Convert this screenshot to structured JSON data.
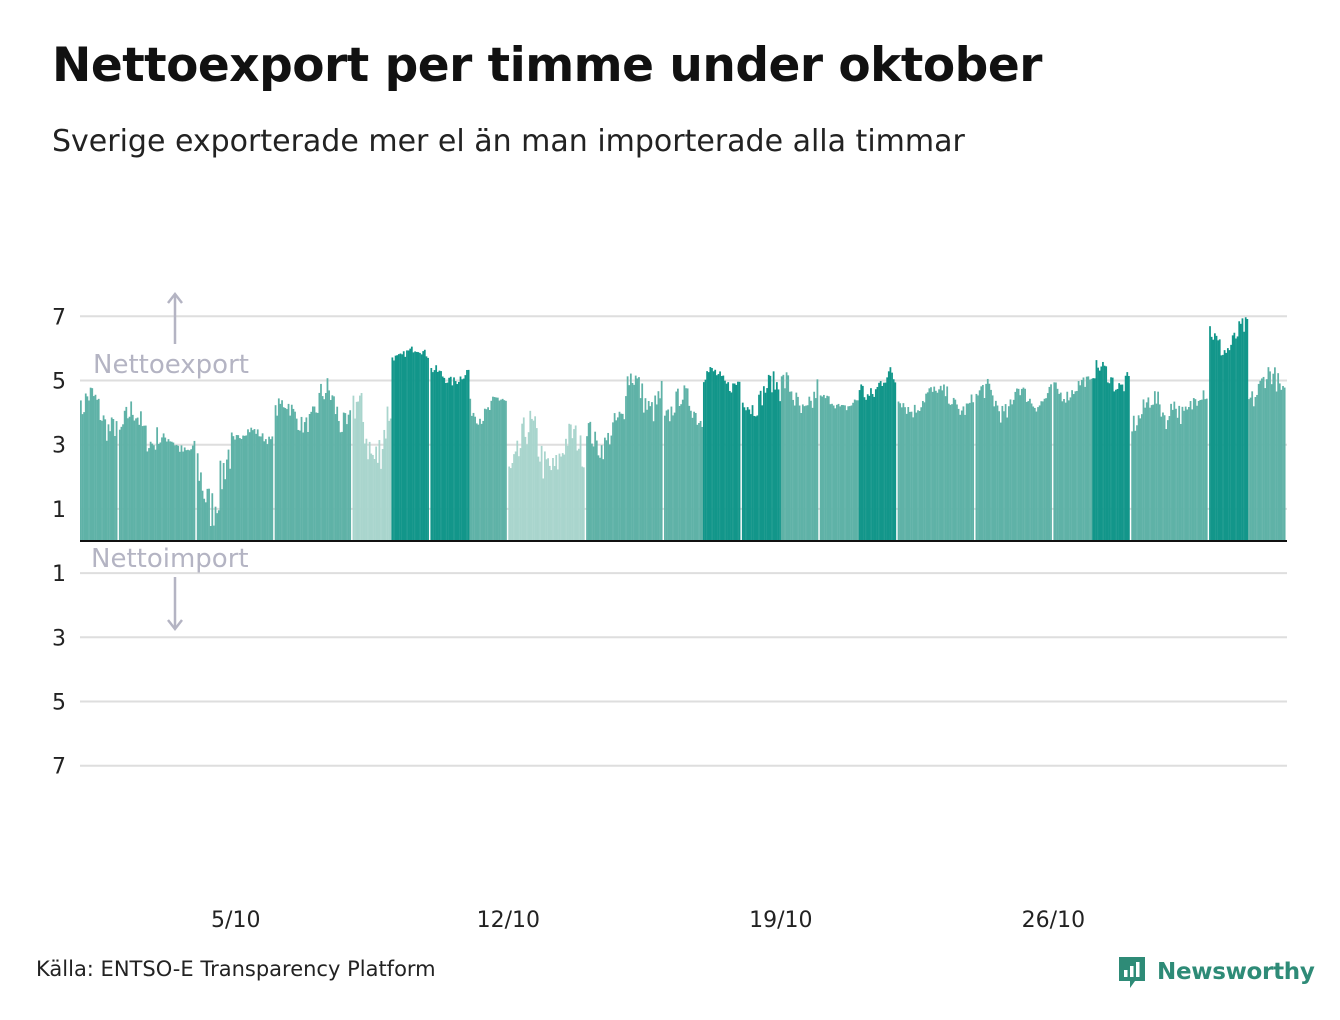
{
  "header": {
    "title": "Nettoexport per timme under oktober",
    "subtitle": "Sverige exporterade mer el än man importerade alla timmar"
  },
  "footer": {
    "source": "Källa: ENTSO-E Transparency Platform",
    "brand": "Newsworthy"
  },
  "colors": {
    "export_dark": "#12968a",
    "export_mid": "#5fb2a7",
    "export_light": "#a9d5cd",
    "grid": "#dedede",
    "zero_line": "#111111",
    "annotation": "#b4b4c3",
    "brand": "#2e8b77"
  },
  "chart_data": {
    "type": "bar",
    "x_unit": "hour",
    "x_start": "2020-10-01",
    "x_end": "2020-10-31",
    "ylim": [
      -8,
      7.2
    ],
    "y_ticks": [
      {
        "value": 7,
        "label": "7"
      },
      {
        "value": 5,
        "label": "5"
      },
      {
        "value": 3,
        "label": "3"
      },
      {
        "value": 1,
        "label": "1"
      },
      {
        "value": -1,
        "label": "1"
      },
      {
        "value": -3,
        "label": "3"
      },
      {
        "value": -5,
        "label": "5"
      },
      {
        "value": -7,
        "label": "7"
      }
    ],
    "x_ticks": [
      {
        "value": "2020-10-05",
        "label": "5/10"
      },
      {
        "value": "2020-10-12",
        "label": "12/10"
      },
      {
        "value": "2020-10-19",
        "label": "19/10"
      },
      {
        "value": "2020-10-26",
        "label": "26/10"
      }
    ],
    "annotations": {
      "export": "Nettoexport",
      "import": "Nettoimport"
    },
    "series_shape": "hourly bars per day with daily gaps; peak net export about 7.0 near 30/10, low about 0.3 near 4/10; no net import hours",
    "daily_values": [
      {
        "date": "2020-10-01",
        "min": 3.0,
        "max": 5.0,
        "shade": "mid"
      },
      {
        "date": "2020-10-02",
        "min": 2.6,
        "max": 4.5,
        "shade": "mid"
      },
      {
        "date": "2020-10-03",
        "min": 2.6,
        "max": 3.4,
        "shade": "mid"
      },
      {
        "date": "2020-10-04",
        "min": 0.3,
        "max": 3.5,
        "shade": "mid"
      },
      {
        "date": "2020-10-05",
        "min": 3.0,
        "max": 3.6,
        "shade": "mid"
      },
      {
        "date": "2020-10-06",
        "min": 3.3,
        "max": 4.6,
        "shade": "mid"
      },
      {
        "date": "2020-10-07",
        "min": 3.0,
        "max": 5.2,
        "shade": "mid"
      },
      {
        "date": "2020-10-08",
        "min": 1.8,
        "max": 5.1,
        "shade": "light"
      },
      {
        "date": "2020-10-09",
        "min": 5.6,
        "max": 6.1,
        "shade": "dark"
      },
      {
        "date": "2020-10-10",
        "min": 4.8,
        "max": 5.5,
        "shade": "dark"
      },
      {
        "date": "2020-10-11",
        "min": 3.6,
        "max": 4.7,
        "shade": "mid"
      },
      {
        "date": "2020-10-12",
        "min": 1.5,
        "max": 4.2,
        "shade": "light"
      },
      {
        "date": "2020-10-13",
        "min": 1.8,
        "max": 3.8,
        "shade": "light"
      },
      {
        "date": "2020-10-14",
        "min": 2.5,
        "max": 4.2,
        "shade": "mid"
      },
      {
        "date": "2020-10-15",
        "min": 3.6,
        "max": 5.6,
        "shade": "mid"
      },
      {
        "date": "2020-10-16",
        "min": 3.4,
        "max": 4.9,
        "shade": "mid"
      },
      {
        "date": "2020-10-17",
        "min": 4.6,
        "max": 5.5,
        "shade": "dark"
      },
      {
        "date": "2020-10-18",
        "min": 3.8,
        "max": 5.3,
        "shade": "dark"
      },
      {
        "date": "2020-10-19",
        "min": 3.5,
        "max": 5.4,
        "shade": "mid"
      },
      {
        "date": "2020-10-20",
        "min": 4.0,
        "max": 4.6,
        "shade": "mid"
      },
      {
        "date": "2020-10-21",
        "min": 4.2,
        "max": 5.5,
        "shade": "dark"
      },
      {
        "date": "2020-10-22",
        "min": 3.8,
        "max": 4.9,
        "shade": "mid"
      },
      {
        "date": "2020-10-23",
        "min": 3.8,
        "max": 4.9,
        "shade": "mid"
      },
      {
        "date": "2020-10-24",
        "min": 3.6,
        "max": 5.1,
        "shade": "mid"
      },
      {
        "date": "2020-10-25",
        "min": 4.0,
        "max": 5.0,
        "shade": "mid"
      },
      {
        "date": "2020-10-26",
        "min": 4.3,
        "max": 5.2,
        "shade": "mid"
      },
      {
        "date": "2020-10-27",
        "min": 4.5,
        "max": 5.7,
        "shade": "dark"
      },
      {
        "date": "2020-10-28",
        "min": 3.3,
        "max": 4.8,
        "shade": "mid"
      },
      {
        "date": "2020-10-29",
        "min": 3.6,
        "max": 5.0,
        "shade": "mid"
      },
      {
        "date": "2020-10-30",
        "min": 5.6,
        "max": 7.0,
        "shade": "dark"
      },
      {
        "date": "2020-10-31",
        "min": 4.0,
        "max": 5.6,
        "shade": "mid"
      }
    ]
  }
}
